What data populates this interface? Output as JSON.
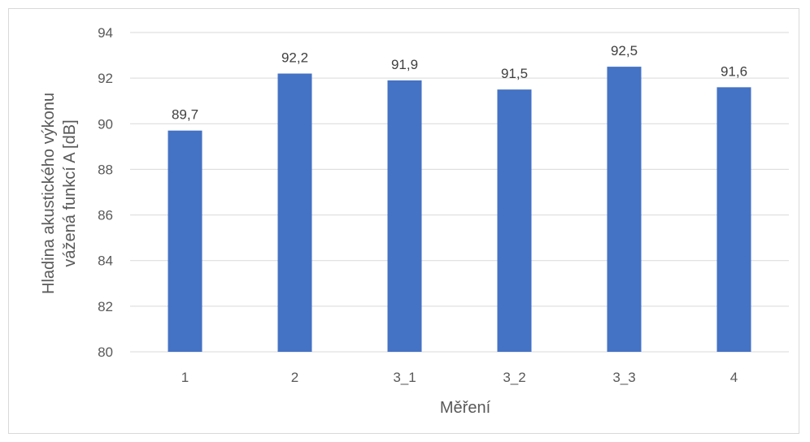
{
  "chart_data": {
    "type": "bar",
    "categories": [
      "1",
      "2",
      "3_1",
      "3_2",
      "3_3",
      "4"
    ],
    "values": [
      89.7,
      92.2,
      91.9,
      91.5,
      92.5,
      91.6
    ],
    "value_labels": [
      "89,7",
      "92,2",
      "91,9",
      "91,5",
      "92,5",
      "91,6"
    ],
    "xlabel": "Měření",
    "ylabel_lines": [
      "Hladina akustického výkonu",
      "vážená funkcí A [dB]"
    ],
    "ylim": [
      80,
      94
    ],
    "yticks": [
      80,
      82,
      84,
      86,
      88,
      90,
      92,
      94
    ],
    "grid": true,
    "bar_color": "#4472c4",
    "grid_color": "#d9d9d9"
  }
}
